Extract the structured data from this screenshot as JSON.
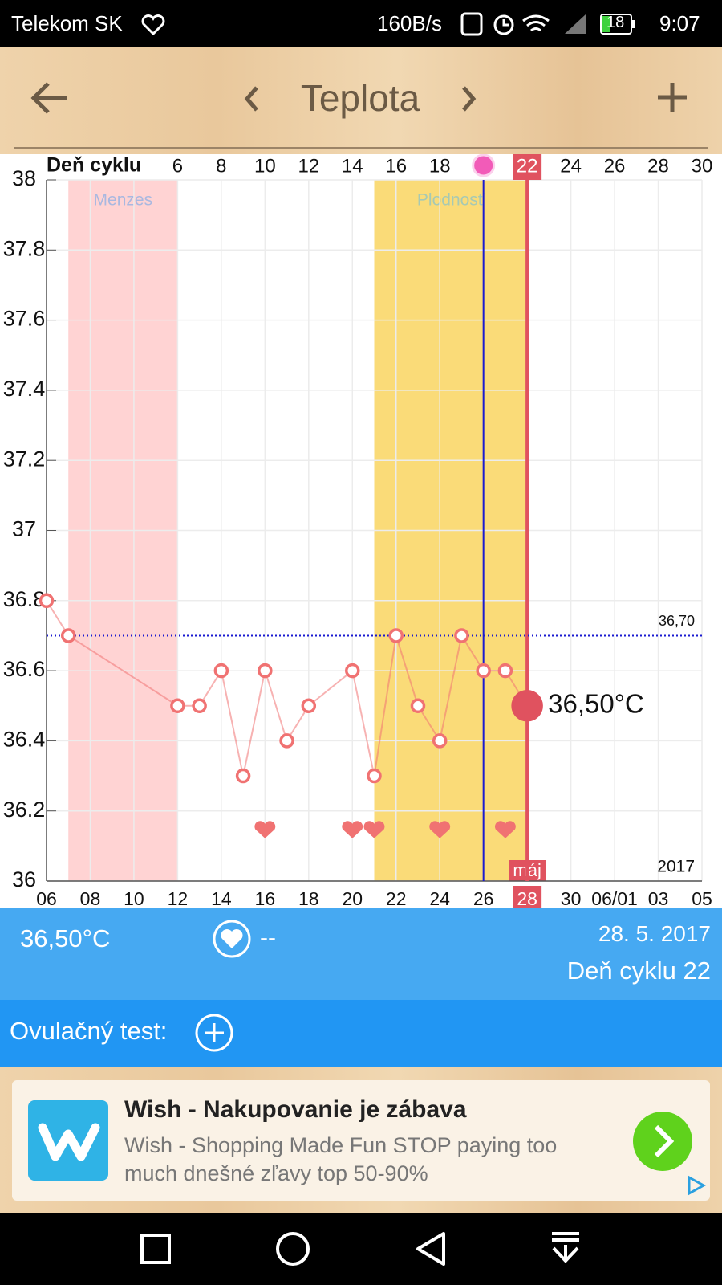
{
  "status_bar": {
    "carrier": "Telekom SK",
    "speed": "160B/s",
    "battery": "18",
    "time": "9:07"
  },
  "header": {
    "title": "Teplota"
  },
  "chart_data": {
    "type": "line",
    "x_label": "Deň cyklu",
    "xlim": [
      0,
      30
    ],
    "xticks": [
      6,
      8,
      10,
      12,
      14,
      16,
      18,
      22,
      24,
      26,
      28,
      30
    ],
    "date_ticks": [
      {
        "value": 0,
        "label": "06"
      },
      {
        "value": 2,
        "label": "08"
      },
      {
        "value": 4,
        "label": "10"
      },
      {
        "value": 6,
        "label": "12"
      },
      {
        "value": 8,
        "label": "14"
      },
      {
        "value": 10,
        "label": "16"
      },
      {
        "value": 12,
        "label": "18"
      },
      {
        "value": 14,
        "label": "20"
      },
      {
        "value": 16,
        "label": "22"
      },
      {
        "value": 18,
        "label": "24"
      },
      {
        "value": 20,
        "label": "26"
      },
      {
        "value": 22,
        "label": "28"
      },
      {
        "value": 24,
        "label": "30"
      },
      {
        "value": 26,
        "label": "06/01"
      },
      {
        "value": 28,
        "label": "03"
      },
      {
        "value": 30,
        "label": "05"
      }
    ],
    "month_label": "máj",
    "year_label": "2017",
    "ylim": [
      36,
      38
    ],
    "yticks": [
      36,
      36.2,
      36.4,
      36.6,
      36.8,
      37,
      37.2,
      37.4,
      37.6,
      37.8,
      38
    ],
    "grid": true,
    "bands": [
      {
        "name": "Menzes",
        "start": 1,
        "end": 6,
        "color": "#ffd3d3"
      },
      {
        "name": "Plodnosť",
        "start": 15,
        "end": 22,
        "color": "#fadb78"
      }
    ],
    "ovulation_day": 20,
    "current_day": 22,
    "reference_line": {
      "value": 36.7,
      "label": "36,70"
    },
    "intercourse_days": [
      10,
      14,
      15,
      18,
      21
    ],
    "series": [
      {
        "color": "#f07272",
        "x": [
          0,
          1,
          6,
          7,
          8,
          9,
          10,
          11,
          12,
          14,
          15,
          16,
          17,
          18,
          19,
          20,
          21,
          22
        ],
        "values": [
          36.8,
          36.7,
          36.5,
          36.5,
          36.6,
          36.3,
          36.6,
          36.4,
          36.5,
          36.6,
          36.3,
          36.7,
          36.5,
          36.4,
          36.7,
          36.6,
          36.6,
          36.5
        ],
        "value_labels": [
          null,
          null,
          null,
          null,
          null,
          null,
          null,
          null,
          null,
          null,
          null,
          null,
          null,
          null,
          null,
          null,
          null,
          "36,50°C"
        ]
      }
    ]
  },
  "info_panel": {
    "temperature": "36,50°C",
    "intercourse": "--",
    "date": "28. 5. 2017",
    "cycle_day": "Deň cyklu 22"
  },
  "ovulation_test": {
    "label": "Ovulačný test:"
  },
  "ad": {
    "title": "Wish - Nakupovanie je zábava",
    "body": "Wish - Shopping Made Fun STOP paying too much dnešné zľavy top 50-90%"
  }
}
